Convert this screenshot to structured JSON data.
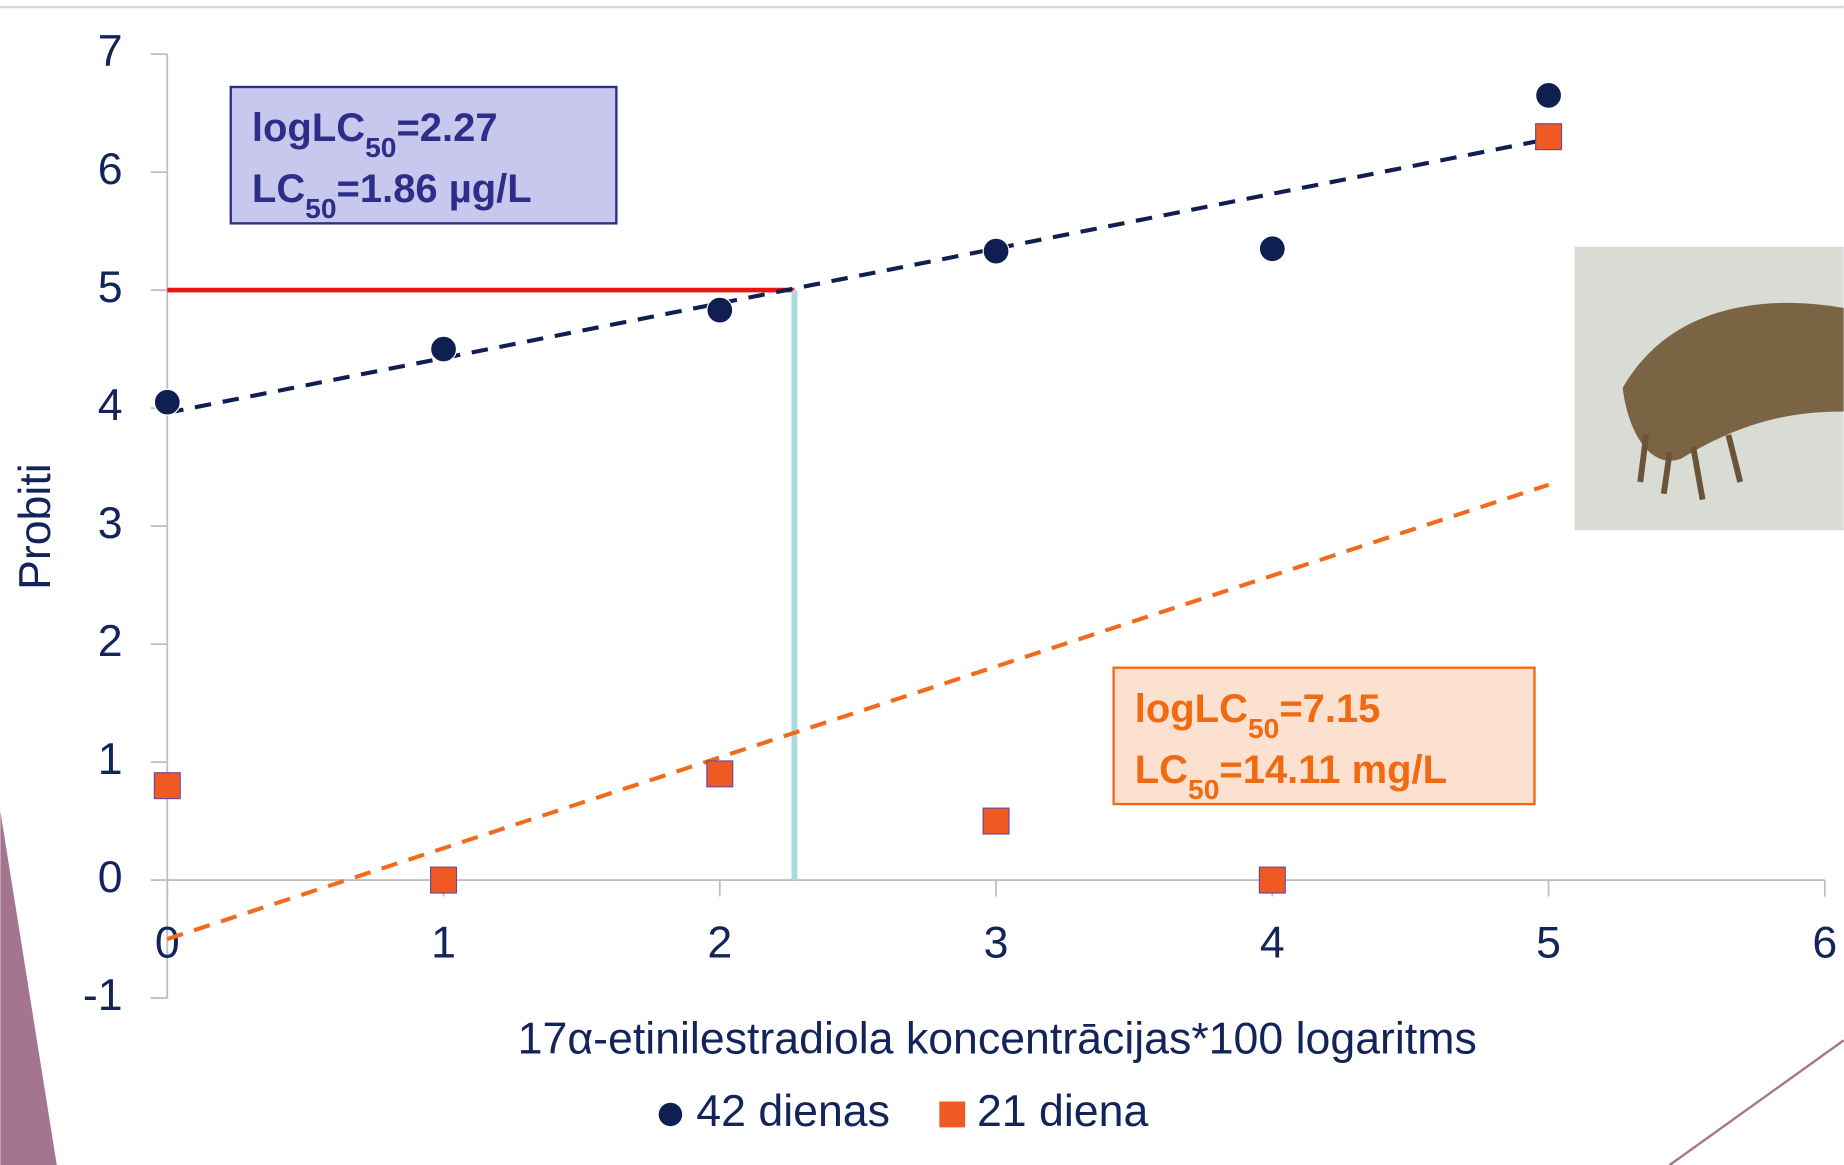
{
  "chart_data": {
    "type": "scatter",
    "y_label": "Probiti",
    "x_label": "17α-etinilestradiola koncentrācijas*100 logaritms",
    "xlim": [
      0,
      6
    ],
    "xticks": [
      0,
      1,
      2,
      3,
      4,
      5,
      6
    ],
    "ylim": [
      -1,
      7
    ],
    "yticks": [
      -1,
      0,
      1,
      2,
      3,
      4,
      5,
      6,
      7
    ],
    "series": [
      {
        "name": "42 dienas",
        "color": "#0f1f52",
        "marker": "circle",
        "x": [
          0,
          1,
          2,
          3,
          4,
          5
        ],
        "values": [
          4.05,
          4.5,
          4.83,
          5.33,
          5.35,
          6.65
        ]
      },
      {
        "name": "21 diena",
        "color": "#f05a22",
        "marker": "square",
        "x": [
          0,
          1,
          2,
          3,
          4,
          5
        ],
        "values": [
          0.8,
          0,
          0.9,
          0.5,
          0,
          6.3
        ]
      }
    ],
    "trendlines": [
      {
        "color": "#0f1f52",
        "x": [
          0,
          5
        ],
        "values": [
          3.96,
          6.28
        ]
      },
      {
        "color": "#f26b1d",
        "x": [
          0,
          5
        ],
        "values": [
          -0.5,
          3.35
        ]
      }
    ],
    "reference": {
      "y": 5,
      "x": 2.27,
      "y_color": "#ee1111",
      "x_color": "#a9dbe0"
    },
    "annotations": [
      {
        "lines": [
          {
            "prefix": "logLC",
            "sub": "50",
            "suffix": "=2.27"
          },
          {
            "prefix": "LC",
            "sub": "50",
            "suffix": "=1.86 µg/L"
          }
        ],
        "color": "#2e2e8a",
        "fill": "#c8c8ee"
      },
      {
        "lines": [
          {
            "prefix": "logLC",
            "sub": "50",
            "suffix": "=7.15"
          },
          {
            "prefix": "LC",
            "sub": "50",
            "suffix": "=14.11 mg/L"
          }
        ],
        "color": "#f06a12",
        "fill": "#fde1d0"
      }
    ]
  }
}
